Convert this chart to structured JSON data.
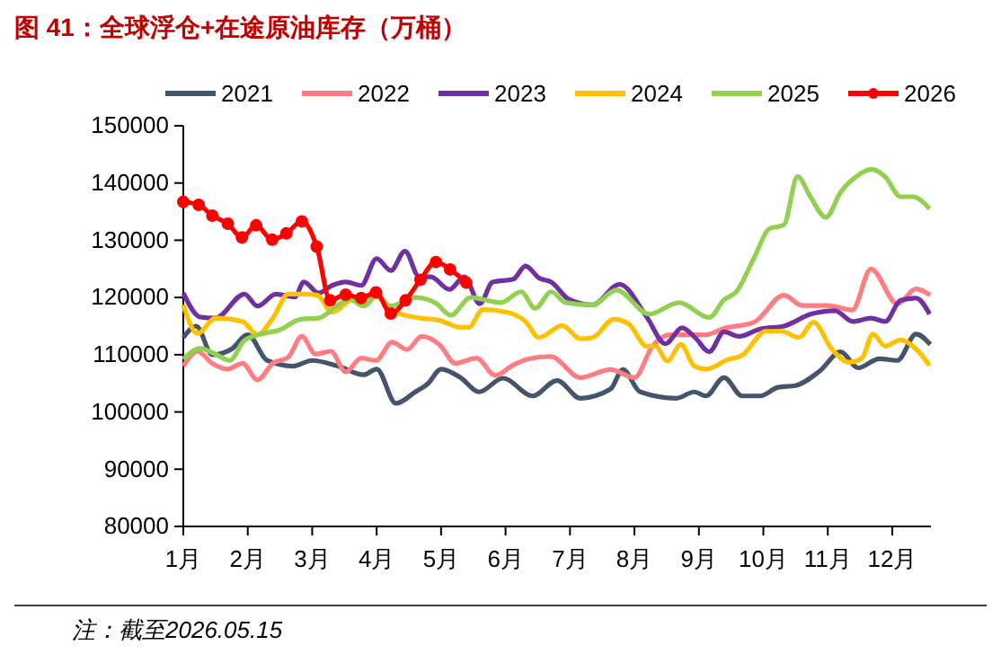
{
  "chart_data": {
    "type": "line",
    "title": "图 41：全球浮仓+在途原油库存（万桶）",
    "annotations": [
      "注：截至2026.05.15"
    ],
    "xlim": [
      1,
      12.6
    ],
    "xticks": [
      {
        "value": 1,
        "label": "1月"
      },
      {
        "value": 2,
        "label": "2月"
      },
      {
        "value": 3,
        "label": "3月"
      },
      {
        "value": 4,
        "label": "4月"
      },
      {
        "value": 5,
        "label": "5月"
      },
      {
        "value": 6,
        "label": "6月"
      },
      {
        "value": 7,
        "label": "7月"
      },
      {
        "value": 8,
        "label": "8月"
      },
      {
        "value": 9,
        "label": "9月"
      },
      {
        "value": 10,
        "label": "10月"
      },
      {
        "value": 11,
        "label": "11月"
      },
      {
        "value": 12,
        "label": "12月"
      }
    ],
    "ylim": [
      80000,
      150000
    ],
    "yticks": [
      80000,
      90000,
      100000,
      110000,
      120000,
      130000,
      140000,
      150000
    ],
    "grid": false,
    "legend": "top",
    "line_style": "solid",
    "series": [
      {
        "name": "2021",
        "color": "#44546a",
        "marker": "none",
        "x": [
          1,
          1.2,
          1.45,
          1.75,
          2.0,
          2.3,
          2.7,
          3.0,
          3.4,
          3.8,
          4.0,
          4.3,
          4.6,
          4.8,
          5.0,
          5.3,
          5.59,
          5.96,
          6.42,
          6.8,
          7.16,
          7.63,
          7.82,
          8.09,
          8.65,
          8.93,
          9.11,
          9.39,
          9.67,
          9.95,
          10.23,
          10.5,
          10.88,
          11.2,
          11.47,
          11.8,
          12.08,
          12.37,
          12.59
        ],
        "values": [
          113000,
          115000,
          110000,
          111000,
          113500,
          109000,
          108000,
          109000,
          108000,
          106500,
          107500,
          101500,
          103500,
          105000,
          107500,
          106000,
          103500,
          105900,
          102800,
          105500,
          102400,
          104000,
          107400,
          103500,
          102400,
          103500,
          102800,
          106000,
          102800,
          102800,
          104300,
          104600,
          107200,
          110500,
          107700,
          109300,
          109000,
          113600,
          111800
        ]
      },
      {
        "name": "2022",
        "color": "#ff7c80",
        "marker": "none",
        "x": [
          1,
          1.22,
          1.45,
          1.69,
          1.92,
          2.15,
          2.39,
          2.63,
          2.84,
          3.05,
          3.29,
          3.52,
          3.76,
          3.99,
          4.24,
          4.47,
          4.7,
          4.98,
          5.22,
          5.55,
          5.84,
          6.12,
          6.33,
          6.7,
          7.16,
          7.63,
          8.0,
          8.28,
          8.55,
          9.11,
          9.39,
          9.86,
          10.32,
          10.6,
          11.0,
          11.38,
          11.67,
          12.08,
          12.37,
          12.59
        ],
        "values": [
          108000,
          110600,
          108500,
          107500,
          108500,
          105600,
          108500,
          109600,
          113200,
          110100,
          110600,
          107000,
          109400,
          109000,
          112200,
          110900,
          113200,
          111700,
          108500,
          109400,
          106400,
          108200,
          109200,
          109700,
          106000,
          107400,
          106000,
          111500,
          113500,
          113500,
          114600,
          115700,
          120400,
          118600,
          118600,
          117800,
          125000,
          118900,
          121500,
          120400
        ]
      },
      {
        "name": "2023",
        "color": "#7030a0",
        "marker": "none",
        "x": [
          1,
          1.26,
          1.5,
          1.95,
          2.15,
          2.44,
          2.73,
          2.87,
          3.1,
          3.31,
          3.53,
          3.76,
          4.0,
          4.22,
          4.44,
          4.66,
          4.84,
          5.13,
          5.36,
          5.6,
          5.8,
          6.12,
          6.31,
          6.52,
          6.71,
          6.98,
          7.35,
          7.77,
          8.19,
          8.48,
          8.74,
          8.95,
          9.16,
          9.39,
          9.62,
          9.95,
          10.32,
          10.74,
          11.11,
          11.39,
          11.67,
          11.89,
          12.13,
          12.37,
          12.58
        ],
        "values": [
          120800,
          116600,
          116400,
          120600,
          118500,
          120600,
          120100,
          122700,
          120800,
          122100,
          122700,
          122100,
          126800,
          124700,
          128100,
          123600,
          123600,
          121400,
          123600,
          118900,
          122700,
          123200,
          125500,
          123400,
          122700,
          119700,
          118700,
          122300,
          116600,
          111900,
          114700,
          112900,
          110500,
          114000,
          113200,
          114500,
          115000,
          117100,
          117700,
          115800,
          116400,
          115800,
          119500,
          119900,
          117100
        ]
      },
      {
        "name": "2024",
        "color": "#ffc000",
        "marker": "none",
        "x": [
          1,
          1.22,
          1.5,
          1.92,
          2.15,
          2.39,
          2.63,
          2.87,
          3.08,
          3.31,
          3.58,
          3.81,
          4.0,
          4.3,
          4.68,
          4.98,
          5.29,
          5.43,
          5.65,
          6.03,
          6.31,
          6.52,
          6.88,
          7.16,
          7.35,
          7.68,
          7.91,
          8.19,
          8.33,
          8.51,
          8.72,
          8.93,
          9.11,
          9.44,
          9.67,
          10.04,
          10.28,
          10.55,
          10.78,
          11.06,
          11.33,
          11.53,
          11.7,
          11.89,
          12.13,
          12.37,
          12.58
        ],
        "values": [
          118700,
          113700,
          116400,
          115800,
          113500,
          116400,
          120600,
          120600,
          120400,
          117400,
          119500,
          120100,
          120100,
          117400,
          116400,
          116000,
          114800,
          114800,
          117900,
          117400,
          115800,
          113000,
          115100,
          112800,
          113000,
          116200,
          115400,
          111500,
          111500,
          108900,
          111800,
          108000,
          107500,
          109100,
          109900,
          114100,
          114100,
          113000,
          115700,
          111000,
          108700,
          109400,
          113600,
          111500,
          112600,
          111000,
          108100
        ]
      },
      {
        "name": "2025",
        "color": "#92d050",
        "marker": "none",
        "x": [
          1,
          1.26,
          1.5,
          1.72,
          1.95,
          2.25,
          2.49,
          2.82,
          3.1,
          3.38,
          3.58,
          3.8,
          4.0,
          4.22,
          4.61,
          4.92,
          5.15,
          5.46,
          5.93,
          6.24,
          6.46,
          6.71,
          6.93,
          7.35,
          7.72,
          8.23,
          8.69,
          9.16,
          9.39,
          9.58,
          9.86,
          10.09,
          10.32,
          10.53,
          10.74,
          10.97,
          11.2,
          11.44,
          11.67,
          11.89,
          12.13,
          12.32,
          12.58
        ],
        "values": [
          109200,
          111100,
          110100,
          109000,
          112500,
          113700,
          114300,
          116200,
          116400,
          118500,
          119700,
          118500,
          120300,
          118500,
          120000,
          119000,
          116900,
          120000,
          119100,
          121000,
          118100,
          121000,
          119100,
          118700,
          121300,
          117100,
          119100,
          116500,
          119600,
          121000,
          127000,
          132000,
          132700,
          141100,
          137400,
          134000,
          138400,
          141100,
          142400,
          141100,
          137600,
          137600,
          135500
        ]
      },
      {
        "name": "2026",
        "color": "#ff0000",
        "marker": "circle",
        "x": [
          1.0,
          1.24,
          1.45,
          1.69,
          1.91,
          2.13,
          2.38,
          2.6,
          2.84,
          3.07,
          3.28,
          3.52,
          3.76,
          3.99,
          4.22,
          4.45,
          4.68,
          4.92,
          5.14,
          5.39
        ],
        "values": [
          136700,
          136200,
          134300,
          132900,
          130500,
          132600,
          130100,
          131200,
          133300,
          128900,
          119500,
          120500,
          119900,
          120900,
          117200,
          119500,
          123100,
          126200,
          124900,
          122600
        ]
      }
    ]
  }
}
